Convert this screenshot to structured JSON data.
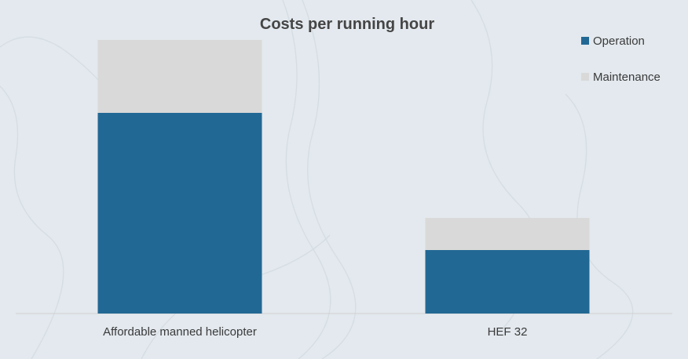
{
  "chart_data": {
    "type": "bar",
    "stacked": true,
    "title": "Costs per running hour",
    "xlabel": "",
    "ylabel": "",
    "categories": [
      "Affordable manned helicopter",
      "HEF 32"
    ],
    "series": [
      {
        "name": "Operation",
        "values": [
          256,
          81
        ],
        "color": "#226894"
      },
      {
        "name": "Maintenance",
        "values": [
          93,
          41
        ],
        "color": "#d9d9d9"
      }
    ],
    "ylim": [
      0,
      349
    ],
    "grid": false,
    "legend_position": "top-right",
    "y_axis_visible": false
  },
  "colors": {
    "background": "#e3e9ee",
    "axis_line": "#d0d0d0",
    "title": "#454545",
    "text": "#3a3a3a"
  }
}
